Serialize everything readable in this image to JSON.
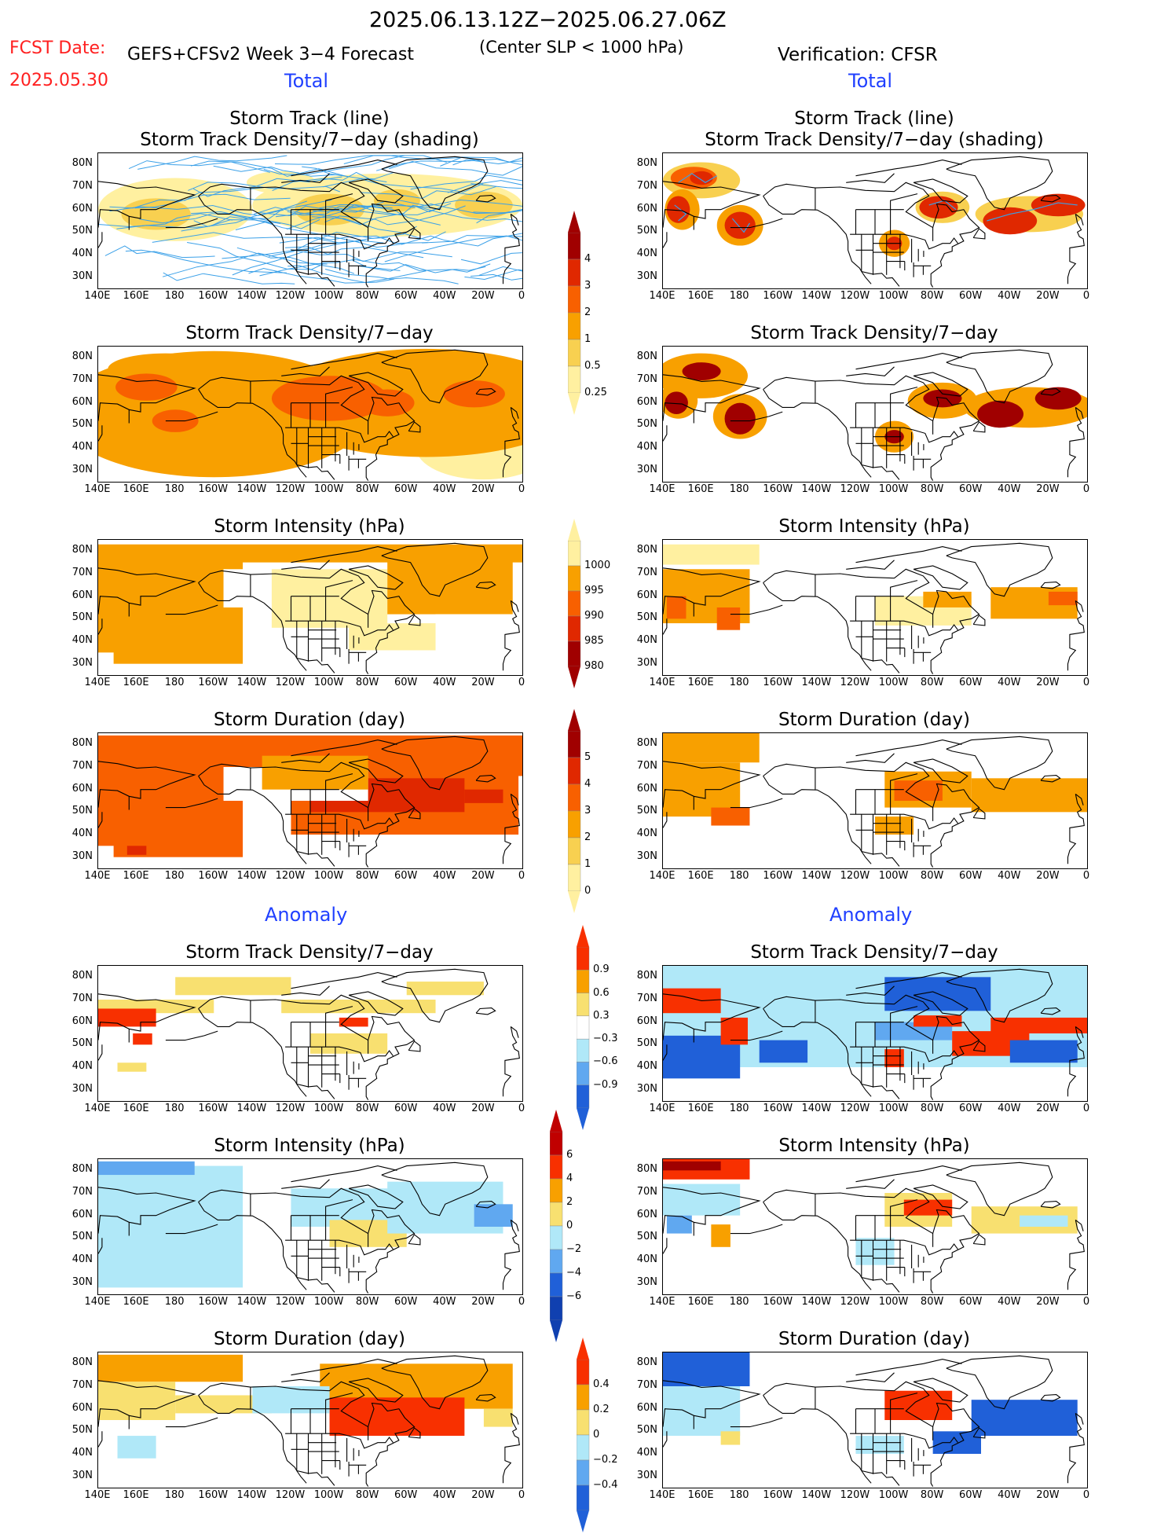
{
  "header": {
    "date_range": "2025.06.13.12Z−2025.06.27.06Z",
    "fcst_label": "FCST Date:",
    "fcst_date": "2025.05.30",
    "model": "GEFS+CFSv2 Week 3−4 Forecast",
    "criterion": "(Center SLP < 1000 hPa)",
    "verification": "Verification: CFSR",
    "total_left": "Total",
    "total_right": "Total",
    "anomaly_left": "Anomaly",
    "anomaly_right": "Anomaly"
  },
  "panel_titles": {
    "track_line": "Storm Track (line)",
    "track_shading": "Storm Track Density/7−day (shading)",
    "density": "Storm Track Density/7−day",
    "intensity": "Storm Intensity (hPa)",
    "duration": "Storm Duration (day)"
  },
  "axes": {
    "lat_labels": [
      "80N",
      "70N",
      "60N",
      "50N",
      "40N",
      "30N"
    ],
    "lon_labels": [
      "140E",
      "160E",
      "180",
      "160W",
      "140W",
      "120W",
      "100W",
      "80W",
      "60W",
      "40W",
      "20W",
      "0"
    ]
  },
  "colorbars": {
    "density": {
      "labels": [
        "4",
        "3",
        "2",
        "1",
        "0.5",
        "0.25"
      ],
      "colors": [
        "#a00000",
        "#e02800",
        "#f86000",
        "#f8a000",
        "#f8d050",
        "#fff0a0"
      ]
    },
    "intensity": {
      "labels": [
        "1000",
        "995",
        "990",
        "985",
        "980"
      ],
      "colors": [
        "#fff0a0",
        "#f8a000",
        "#f86000",
        "#e02800",
        "#a00000"
      ]
    },
    "duration": {
      "labels": [
        "5",
        "4",
        "3",
        "2",
        "1",
        "0"
      ],
      "colors": [
        "#a00000",
        "#e02800",
        "#f86000",
        "#f8a000",
        "#f8d050",
        "#fff0a0"
      ]
    },
    "anom_density": {
      "labels": [
        "0.9",
        "0.6",
        "0.3",
        "−0.3",
        "−0.6",
        "−0.9"
      ],
      "colors": [
        "#f83000",
        "#f8a000",
        "#f8e070",
        "#ffffff",
        "#b0e8f8",
        "#60a8f0",
        "#2060d8"
      ]
    },
    "anom_intensity": {
      "labels": [
        "6",
        "4",
        "2",
        "0",
        "−2",
        "−4",
        "−6"
      ],
      "colors": [
        "#c00000",
        "#f83000",
        "#f8a000",
        "#f8e070",
        "#b0e8f8",
        "#60a8f0",
        "#2060d8",
        "#1040b0"
      ]
    },
    "anom_duration": {
      "labels": [
        "0.4",
        "0.2",
        "0",
        "−0.2",
        "−0.4"
      ],
      "colors": [
        "#f83000",
        "#f8a000",
        "#f8e070",
        "#b0e8f8",
        "#60a8f0",
        "#2060d8"
      ]
    }
  },
  "palette": {
    "fc_light": "#fff0a0",
    "fc_yel": "#f8d050",
    "fc_org": "#f8a000",
    "fc_dorg": "#f86000",
    "fc_red": "#e02800",
    "fc_dred": "#a00000",
    "an_pos1": "#f8e070",
    "an_pos2": "#f8a000",
    "an_pos3": "#f83000",
    "an_neg1": "#b0e8f8",
    "an_neg2": "#60a8f0",
    "an_neg3": "#2060d8",
    "track_line": "#3aa0e8"
  }
}
